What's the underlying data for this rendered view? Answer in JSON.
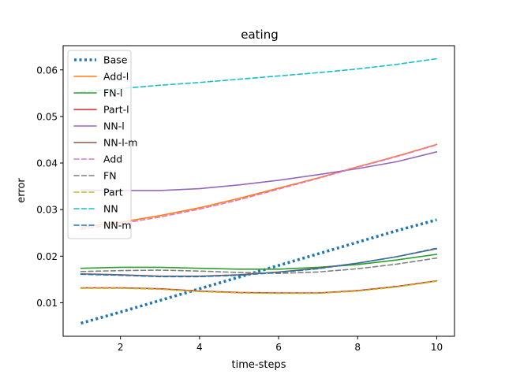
{
  "chart_data": {
    "type": "line",
    "title": "eating",
    "xlabel": "time-steps",
    "ylabel": "error",
    "xlim": [
      0.55,
      10.45
    ],
    "ylim": [
      0.0028,
      0.0652
    ],
    "xticks": [
      2,
      4,
      6,
      8,
      10
    ],
    "yticks": [
      0.01,
      0.02,
      0.03,
      0.04,
      0.05,
      0.06
    ],
    "ytick_labels": [
      "0.01",
      "0.02",
      "0.03",
      "0.04",
      "0.05",
      "0.06"
    ],
    "grid": false,
    "legend_position": "upper-left",
    "x": [
      1,
      2,
      3,
      4,
      5,
      6,
      7,
      8,
      9,
      10
    ],
    "series": [
      {
        "name": "Base",
        "color": "#1f77b4",
        "style": "dotted",
        "values": [
          0.0056,
          0.008,
          0.0105,
          0.013,
          0.0155,
          0.018,
          0.0205,
          0.023,
          0.0255,
          0.0278
        ]
      },
      {
        "name": "Add-l",
        "color": "#ff7f0e",
        "style": "solid",
        "values": [
          0.0262,
          0.0273,
          0.0287,
          0.0304,
          0.0324,
          0.0346,
          0.0368,
          0.0392,
          0.0415,
          0.044
        ]
      },
      {
        "name": "FN-l",
        "color": "#2ca02c",
        "style": "solid",
        "values": [
          0.0174,
          0.0176,
          0.0176,
          0.0174,
          0.0172,
          0.0172,
          0.0176,
          0.0182,
          0.0192,
          0.0204
        ]
      },
      {
        "name": "Part-l",
        "color": "#d62728",
        "style": "solid",
        "values": [
          0.0132,
          0.0132,
          0.013,
          0.0125,
          0.0122,
          0.0121,
          0.0121,
          0.0126,
          0.0135,
          0.0147
        ]
      },
      {
        "name": "NN-l",
        "color": "#9467bd",
        "style": "solid",
        "values": [
          0.0342,
          0.0341,
          0.0341,
          0.0345,
          0.0353,
          0.0363,
          0.0375,
          0.0388,
          0.0403,
          0.0424
        ]
      },
      {
        "name": "NN-l-m",
        "color": "#8c564b",
        "style": "solid",
        "values": [
          0.0162,
          0.016,
          0.0157,
          0.0157,
          0.016,
          0.0166,
          0.0174,
          0.0185,
          0.0199,
          0.0216
        ]
      },
      {
        "name": "Add",
        "color": "#e377c2",
        "style": "dashed",
        "values": [
          0.0258,
          0.027,
          0.0284,
          0.0301,
          0.0321,
          0.0344,
          0.0367,
          0.0391,
          0.0414,
          0.0439
        ]
      },
      {
        "name": "FN",
        "color": "#7f7f7f",
        "style": "dashed",
        "values": [
          0.0167,
          0.0169,
          0.017,
          0.0168,
          0.0165,
          0.0163,
          0.0166,
          0.0173,
          0.0183,
          0.0196
        ]
      },
      {
        "name": "Part",
        "color": "#bcbd22",
        "style": "dashed",
        "values": [
          0.0131,
          0.0131,
          0.0129,
          0.0124,
          0.0121,
          0.012,
          0.012,
          0.0125,
          0.0134,
          0.0146
        ]
      },
      {
        "name": "NN",
        "color": "#17becf",
        "style": "dashed",
        "values": [
          0.0553,
          0.056,
          0.0567,
          0.0573,
          0.058,
          0.0587,
          0.0594,
          0.0602,
          0.0612,
          0.0624
        ]
      },
      {
        "name": "NN-m",
        "color": "#1f77b4",
        "style": "dashed",
        "values": [
          0.0161,
          0.0159,
          0.0156,
          0.0156,
          0.0159,
          0.0165,
          0.0173,
          0.0185,
          0.0199,
          0.0217
        ]
      }
    ]
  }
}
